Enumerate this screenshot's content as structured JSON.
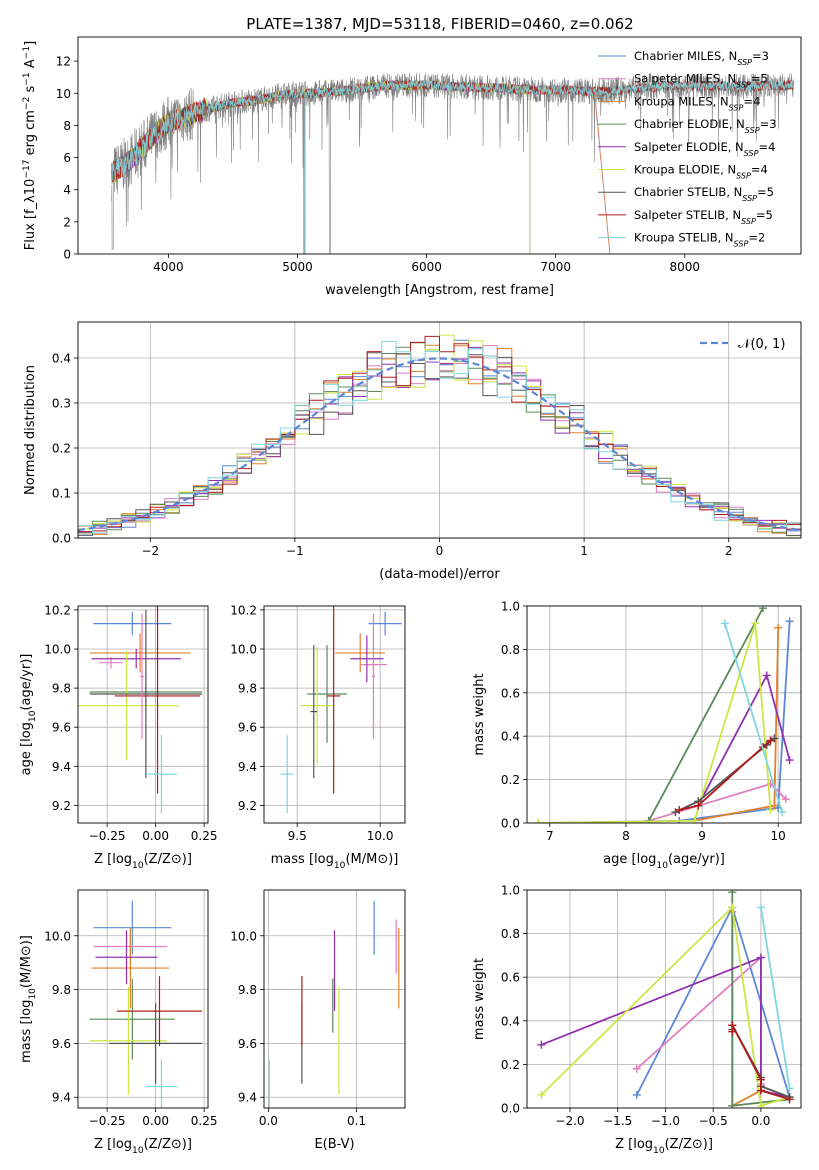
{
  "chart_data": [
    {
      "panel": "spectrum",
      "type": "line",
      "title": "PLATE=1387, MJD=53118, FIBERID=0460, z=0.062",
      "xlabel": "wavelength [Angstrom, rest frame]",
      "ylabel": "Flux [f_λ10^−17 erg cm^−2 s^−1 A^−1]",
      "xlim": [
        3300,
        8900
      ],
      "ylim": [
        0,
        13.5
      ],
      "xticks": [
        "4000",
        "5000",
        "6000",
        "7000",
        "8000"
      ],
      "yticks": [
        "0",
        "2",
        "4",
        "6",
        "8",
        "10",
        "12"
      ],
      "grid": false,
      "legend": "top-right",
      "data_range": [
        3560,
        8840
      ],
      "series": [
        {
          "name": "Chabrier MILES, N_SSP=3",
          "color": "#5b87d6"
        },
        {
          "name": "Salpeter MILES, N_SSP=5",
          "color": "#e07ec3"
        },
        {
          "name": "Kroupa MILES, N_SSP=4",
          "color": "#e0802a"
        },
        {
          "name": "Chabrier ELODIE, N_SSP=3",
          "color": "#5a8a5a"
        },
        {
          "name": "Salpeter ELODIE, N_SSP=4",
          "color": "#9030b0"
        },
        {
          "name": "Kroupa ELODIE, N_SSP=4",
          "color": "#cde645"
        },
        {
          "name": "Chabrier STELIB, N_SSP=5",
          "color": "#555555"
        },
        {
          "name": "Salpeter STELIB, N_SSP=5",
          "color": "#b01c1c"
        },
        {
          "name": "Kroupa STELIB, N_SSP=2",
          "color": "#7fd6dc"
        }
      ],
      "continuum": {
        "x": [
          3560,
          3700,
          3900,
          4000,
          4100,
          4300,
          4500,
          4700,
          4900,
          5100,
          5300,
          5500,
          5700,
          6000,
          6300,
          6600,
          6900,
          7100,
          7300,
          7420,
          7600,
          8000,
          8400,
          8840
        ],
        "y": [
          5.0,
          5.8,
          7.5,
          8.2,
          8.5,
          9.0,
          9.4,
          9.6,
          9.9,
          10.0,
          10.1,
          10.3,
          10.5,
          10.5,
          10.4,
          10.3,
          10.2,
          10.2,
          10.1,
          10.1,
          10.3,
          10.5,
          10.4,
          10.5
        ]
      }
    },
    {
      "panel": "residual-histogram",
      "type": "line",
      "xlabel": "(data-model)/error",
      "ylabel": "Normed distribution",
      "xlim": [
        -2.5,
        2.5
      ],
      "ylim": [
        0,
        0.48
      ],
      "xticks": [
        "−2",
        "−1",
        "0",
        "1",
        "2"
      ],
      "yticks": [
        "0.0",
        "0.1",
        "0.2",
        "0.3",
        "0.4"
      ],
      "grid": true,
      "legend": "top-right",
      "legend_label": "𝒩(0, 1)",
      "gaussian": {
        "mu": 0,
        "sigma": 1,
        "color": "#5b87d6"
      },
      "bin_width": 0.1
    },
    {
      "panel": "Z-age",
      "type": "scatter",
      "xlabel": "Z [log10(Z/Z⊙)]",
      "ylabel": "age  [log10(age/yr)]",
      "xlim": [
        -0.4,
        0.27
      ],
      "ylim": [
        9.11,
        10.22
      ],
      "xticks": [
        "−0.25",
        "0.00",
        "0.25"
      ],
      "yticks": [
        "9.2",
        "9.4",
        "9.6",
        "9.8",
        "10.0",
        "10.2"
      ],
      "grid": true,
      "points": [
        {
          "color": "#5b87d6",
          "x": -0.12,
          "xerr": 0.2,
          "y": 10.13,
          "yerr": 0.06
        },
        {
          "color": "#e07ec3",
          "x": -0.23,
          "xerr": 0.06,
          "y": 9.93,
          "yerr": 0.03
        },
        {
          "color": "#e0802a",
          "x": -0.08,
          "xerr": 0.26,
          "y": 9.98,
          "yerr": 0.1
        },
        {
          "color": "#5a8a5a",
          "x": -0.05,
          "xerr": 0.29,
          "y": 9.78,
          "yerr": 0.1
        },
        {
          "color": "#9030b0",
          "x": -0.1,
          "xerr": 0.23,
          "y": 9.95,
          "yerr": 0.05
        },
        {
          "color": "#cde645",
          "x": -0.15,
          "xerr": 0.27,
          "y": 9.71,
          "yerr": 0.28
        },
        {
          "color": "#555555",
          "x": -0.05,
          "xerr": 0.29,
          "y": 9.77,
          "yerr": 0.43
        },
        {
          "color": "#b01c1c",
          "x": 0.01,
          "xerr": 0.22,
          "y": 9.76,
          "yerr": 0.5
        },
        {
          "color": "#7fd6dc",
          "x": 0.03,
          "xerr": 0.08,
          "y": 9.36,
          "yerr": 0.2
        },
        {
          "color": "#e07ec3",
          "x": -0.07,
          "xerr": 0.01,
          "y": 9.86,
          "yerr": 0.32
        }
      ]
    },
    {
      "panel": "mass-age",
      "type": "scatter",
      "xlabel": "mass [log10(M/M⊙)]",
      "ylabel": "",
      "xlim": [
        9.3,
        10.15
      ],
      "ylim": [
        9.11,
        10.22
      ],
      "xticks": [
        "9.5",
        "10.0"
      ],
      "yticks": [
        "9.2",
        "9.4",
        "9.6",
        "9.8",
        "10.0",
        "10.2"
      ],
      "grid": true,
      "points": [
        {
          "color": "#5b87d6",
          "x": 10.03,
          "xerr": 0.1,
          "y": 10.13,
          "yerr": 0.06
        },
        {
          "color": "#e07ec3",
          "x": 9.96,
          "xerr": 0.08,
          "y": 9.92,
          "yerr": 0.03
        },
        {
          "color": "#e0802a",
          "x": 9.88,
          "xerr": 0.15,
          "y": 9.98,
          "yerr": 0.1
        },
        {
          "color": "#5a8a5a",
          "x": 9.68,
          "xerr": 0.12,
          "y": 9.77,
          "yerr": 0.25
        },
        {
          "color": "#9030b0",
          "x": 9.92,
          "xerr": 0.1,
          "y": 9.95,
          "yerr": 0.12
        },
        {
          "color": "#cde645",
          "x": 9.62,
          "xerr": 0.1,
          "y": 9.71,
          "yerr": 0.3
        },
        {
          "color": "#555555",
          "x": 9.6,
          "xerr": 0.02,
          "y": 9.68,
          "yerr": 0.34
        },
        {
          "color": "#b01c1c",
          "x": 9.72,
          "xerr": 0.04,
          "y": 9.76,
          "yerr": 0.5
        },
        {
          "color": "#7fd6dc",
          "x": 9.44,
          "xerr": 0.04,
          "y": 9.36,
          "yerr": 0.2
        },
        {
          "color": "#e07ec3",
          "x": 9.96,
          "xerr": 0.01,
          "y": 9.86,
          "yerr": 0.32
        }
      ]
    },
    {
      "panel": "age-massweight",
      "type": "line",
      "xlabel": "age  [log10(age/yr)]",
      "ylabel": "mass weight",
      "xlim": [
        6.7,
        10.3
      ],
      "ylim": [
        0,
        1.0
      ],
      "xticks": [
        "7",
        "8",
        "9",
        "10"
      ],
      "yticks": [
        "0.0",
        "0.2",
        "0.4",
        "0.6",
        "0.8",
        "1.0"
      ],
      "grid": true,
      "series": [
        {
          "color": "#5b87d6",
          "x": [
            6.85,
            8.7,
            10.0,
            10.15
          ],
          "y": [
            0.0,
            0.01,
            0.07,
            0.93
          ]
        },
        {
          "color": "#e07ec3",
          "x": [
            8.3,
            9.9,
            10.1
          ],
          "y": [
            0.01,
            0.18,
            0.11
          ]
        },
        {
          "color": "#e0802a",
          "x": [
            8.9,
            9.95,
            10.0
          ],
          "y": [
            0.01,
            0.08,
            0.9
          ]
        },
        {
          "color": "#5a8a5a",
          "x": [
            8.3,
            9.8
          ],
          "y": [
            0.01,
            0.99
          ]
        },
        {
          "color": "#9030b0",
          "x": [
            8.95,
            9.85,
            10.15
          ],
          "y": [
            0.08,
            0.68,
            0.29
          ]
        },
        {
          "color": "#cde645",
          "x": [
            6.85,
            8.9,
            9.7,
            9.9
          ],
          "y": [
            0.0,
            0.01,
            0.92,
            0.06
          ]
        },
        {
          "color": "#555555",
          "x": [
            8.65,
            8.95,
            9.85,
            9.9,
            9.95
          ],
          "y": [
            0.05,
            0.1,
            0.36,
            0.38,
            0.39
          ]
        },
        {
          "color": "#b01c1c",
          "x": [
            8.7,
            8.95,
            9.8,
            9.9
          ],
          "y": [
            0.06,
            0.08,
            0.35,
            0.38
          ]
        },
        {
          "color": "#7fd6dc",
          "x": [
            9.3,
            10.05
          ],
          "y": [
            0.92,
            0.05
          ]
        }
      ]
    },
    {
      "panel": "Z-mass",
      "type": "scatter",
      "xlabel": "Z [log10(Z/Z⊙)]",
      "ylabel": "mass [log10(M/M⊙)]",
      "xlim": [
        -0.4,
        0.27
      ],
      "ylim": [
        9.36,
        10.17
      ],
      "xticks": [
        "−0.25",
        "0.00",
        "0.25"
      ],
      "yticks": [
        "9.4",
        "9.6",
        "9.8",
        "10.0"
      ],
      "grid": true,
      "points": [
        {
          "color": "#5b87d6",
          "x": -0.12,
          "xerr": 0.2,
          "y": 10.03,
          "yerr": 0.1
        },
        {
          "color": "#e07ec3",
          "x": -0.13,
          "xerr": 0.19,
          "y": 9.96,
          "yerr": 0.05
        },
        {
          "color": "#e0802a",
          "x": -0.13,
          "xerr": 0.2,
          "y": 9.88,
          "yerr": 0.15
        },
        {
          "color": "#5a8a5a",
          "x": -0.12,
          "xerr": 0.22,
          "y": 9.69,
          "yerr": 0.15
        },
        {
          "color": "#9030b0",
          "x": -0.15,
          "xerr": 0.16,
          "y": 9.92,
          "yerr": 0.1
        },
        {
          "color": "#cde645",
          "x": -0.14,
          "xerr": 0.2,
          "y": 9.61,
          "yerr": 0.2
        },
        {
          "color": "#555555",
          "x": 0.0,
          "xerr": 0.24,
          "y": 9.6,
          "yerr": 0.15
        },
        {
          "color": "#b01c1c",
          "x": 0.02,
          "xerr": 0.22,
          "y": 9.72,
          "yerr": 0.13
        },
        {
          "color": "#7fd6dc",
          "x": 0.03,
          "xerr": 0.08,
          "y": 9.44,
          "yerr": 0.1
        }
      ]
    },
    {
      "panel": "EBV-mass",
      "type": "scatter",
      "xlabel": "E(B-V)",
      "ylabel": "",
      "xlim": [
        -0.005,
        0.155
      ],
      "ylim": [
        9.36,
        10.17
      ],
      "xticks": [
        "0.0",
        "0.1"
      ],
      "yticks": [
        "9.4",
        "9.6",
        "9.8",
        "10.0"
      ],
      "grid": true,
      "points": [
        {
          "color": "#5b87d6",
          "x": 0.12,
          "y": 10.03,
          "yerr": 0.1
        },
        {
          "color": "#e07ec3",
          "x": 0.145,
          "y": 9.96,
          "yerr": 0.1
        },
        {
          "color": "#e0802a",
          "x": 0.148,
          "y": 9.88,
          "yerr": 0.15
        },
        {
          "color": "#5a8a5a",
          "x": 0.073,
          "y": 9.74,
          "yerr": 0.1
        },
        {
          "color": "#9030b0",
          "x": 0.075,
          "y": 9.87,
          "yerr": 0.15
        },
        {
          "color": "#cde645",
          "x": 0.08,
          "y": 9.61,
          "yerr": 0.2
        },
        {
          "color": "#555555",
          "x": 0.038,
          "y": 9.6,
          "yerr": 0.15
        },
        {
          "color": "#b01c1c",
          "x": 0.038,
          "y": 9.72,
          "yerr": 0.13
        },
        {
          "color": "#7fd6dc",
          "x": 0.001,
          "y": 9.44,
          "yerr": 0.1
        }
      ]
    },
    {
      "panel": "Z-massweight",
      "type": "line",
      "xlabel": "Z [log10(Z/Z⊙)]",
      "ylabel": "mass weight",
      "xlim": [
        -2.45,
        0.42
      ],
      "ylim": [
        0,
        1.0
      ],
      "xticks": [
        "−2.0",
        "−1.5",
        "−1.0",
        "−0.5",
        "0.0"
      ],
      "yticks": [
        "0.0",
        "0.2",
        "0.4",
        "0.6",
        "0.8",
        "1.0"
      ],
      "grid": true,
      "series": [
        {
          "color": "#5b87d6",
          "x": [
            -1.3,
            -0.3,
            0.3
          ],
          "y": [
            0.06,
            0.92,
            0.05
          ]
        },
        {
          "color": "#e07ec3",
          "x": [
            -1.3,
            0.0,
            0.0
          ],
          "y": [
            0.18,
            0.69,
            0.11
          ]
        },
        {
          "color": "#e0802a",
          "x": [
            -0.3,
            -0.3,
            0.0
          ],
          "y": [
            0.9,
            0.01,
            0.08
          ]
        },
        {
          "color": "#5a8a5a",
          "x": [
            -0.3,
            -0.3,
            0.3
          ],
          "y": [
            0.99,
            0.01,
            0.04
          ]
        },
        {
          "color": "#9030b0",
          "x": [
            -2.3,
            0.0,
            0.0,
            0.3
          ],
          "y": [
            0.29,
            0.69,
            0.08,
            0.05
          ]
        },
        {
          "color": "#cde645",
          "x": [
            -2.3,
            -0.3,
            0.0,
            0.3
          ],
          "y": [
            0.06,
            0.92,
            0.01,
            0.05
          ]
        },
        {
          "color": "#555555",
          "x": [
            -0.3,
            -0.3,
            0.0,
            0.0,
            0.3
          ],
          "y": [
            0.36,
            0.38,
            0.14,
            0.1,
            0.05
          ]
        },
        {
          "color": "#b01c1c",
          "x": [
            -0.3,
            -0.3,
            0.0,
            0.0,
            0.3
          ],
          "y": [
            0.35,
            0.38,
            0.13,
            0.08,
            0.04
          ]
        },
        {
          "color": "#7fd6dc",
          "x": [
            0.0,
            0.3
          ],
          "y": [
            0.92,
            0.09
          ]
        }
      ]
    }
  ]
}
